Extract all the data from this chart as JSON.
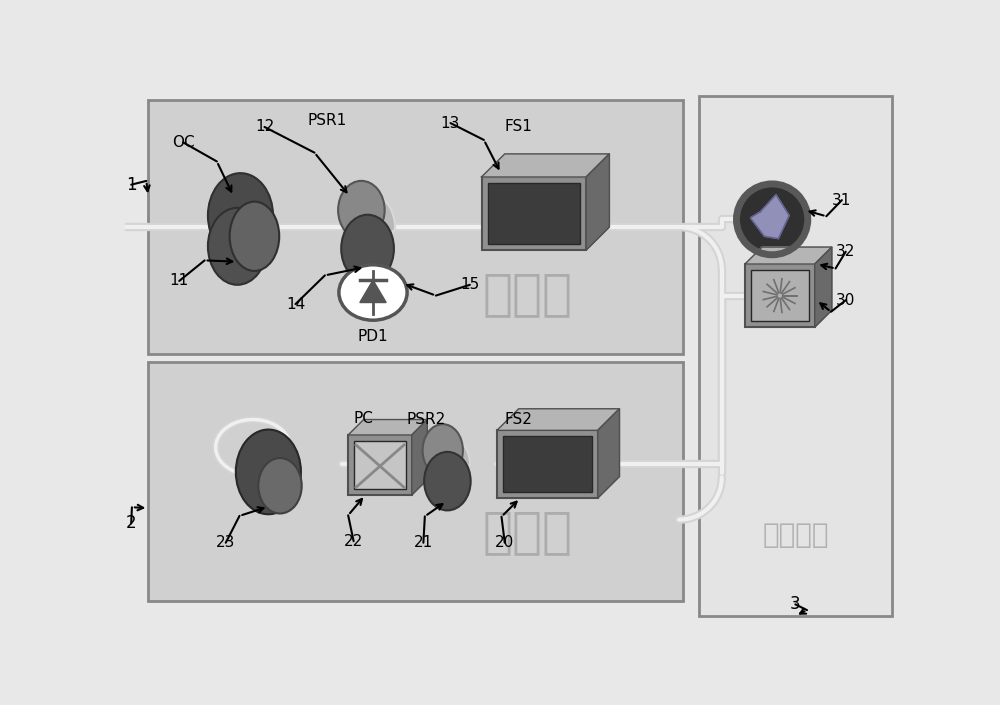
{
  "outer_bg": "#e8e8e8",
  "local_fill": "#d0d0d0",
  "user_fill": "#d0d0d0",
  "transmit_fill": "#e4e4e4",
  "box_edge": "#888888",
  "local_label": "本地端",
  "user_label": "用户端",
  "transmit_label": "传递链路",
  "fiber_outer": "#d4d4d4",
  "fiber_inner": "#f0f0f0",
  "dark_ellipse": "#4a4a4a",
  "med_ellipse": "#707070",
  "light_ellipse": "#909090",
  "box3d_front": "#909090",
  "box3d_top": "#b8b8b8",
  "box3d_right": "#707070",
  "box3d_edge": "#505050",
  "screen_dark": "#383838",
  "label_gray": "#a0a0a0"
}
